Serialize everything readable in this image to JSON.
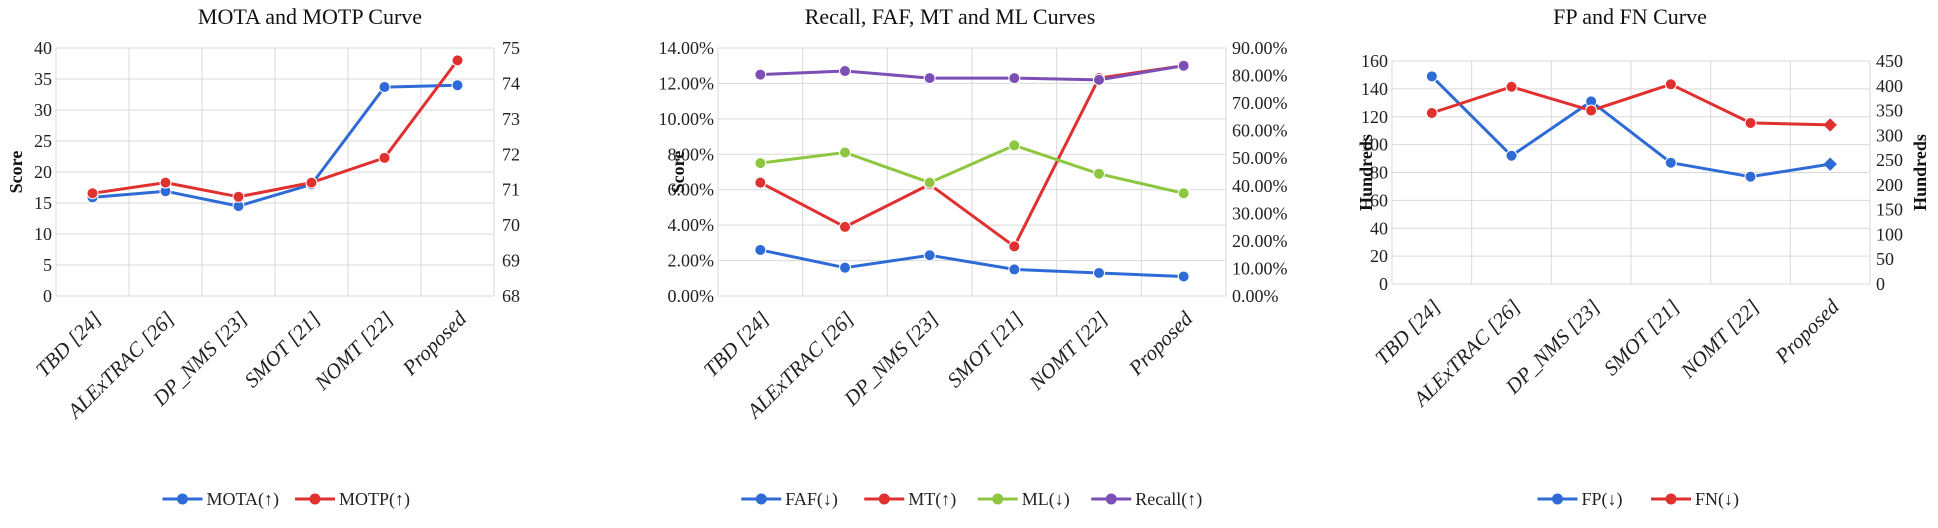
{
  "chart_data": [
    {
      "type": "line",
      "title": "MOTA and MOTP Curve",
      "categories": [
        "TBD [24]",
        "ALExTRAC [26]",
        "DP_NMS [23]",
        "SMOT [21]",
        "NOMT [22]",
        "Proposed"
      ],
      "left_axis": {
        "label": "Score",
        "min": 0,
        "max": 40,
        "step": 5,
        "ticks": [
          "0",
          "5",
          "10",
          "15",
          "20",
          "25",
          "30",
          "35",
          "40"
        ]
      },
      "right_axis": {
        "label": "",
        "min": 68,
        "max": 75,
        "step": 1,
        "ticks": [
          "68",
          "69",
          "70",
          "71",
          "72",
          "73",
          "74",
          "75"
        ]
      },
      "series": [
        {
          "name": "MOTA(↑)",
          "axis": "left",
          "color": "#2e6bd6",
          "marker": "circle",
          "values": [
            15.9,
            16.9,
            14.5,
            18.0,
            33.7,
            34.0
          ]
        },
        {
          "name": "MOTP(↑)",
          "axis": "right",
          "color": "#e03030",
          "marker": "circle",
          "values": [
            70.9,
            71.2,
            70.8,
            71.2,
            71.9,
            74.65
          ]
        }
      ],
      "legend": "bottom"
    },
    {
      "type": "line",
      "title": "Recall, FAF, MT and ML Curves",
      "categories": [
        "TBD [24]",
        "ALExTRAC [26]",
        "DP_NMS [23]",
        "SMOT [21]",
        "NOMT [22]",
        "Proposed"
      ],
      "left_axis": {
        "label": "Score",
        "min": 0,
        "max": 14,
        "step": 2,
        "ticks": [
          "0.00%",
          "2.00%",
          "4.00%",
          "6.00%",
          "8.00%",
          "10.00%",
          "12.00%",
          "14.00%"
        ]
      },
      "right_axis": {
        "label": "",
        "min": 0,
        "max": 90,
        "step": 10,
        "ticks": [
          "0.00%",
          "10.00%",
          "20.00%",
          "30.00%",
          "40.00%",
          "50.00%",
          "60.00%",
          "70.00%",
          "80.00%",
          "90.00%"
        ]
      },
      "series": [
        {
          "name": "FAF(↓)",
          "axis": "left",
          "color": "#2e6bd6",
          "marker": "circle",
          "values": [
            2.6,
            1.6,
            2.3,
            1.5,
            1.3,
            1.1
          ]
        },
        {
          "name": "MT(↑)",
          "axis": "left",
          "color": "#e03030",
          "marker": "circle",
          "values": [
            6.4,
            3.9,
            6.3,
            2.8,
            12.3,
            13.0
          ]
        },
        {
          "name": "ML(↓)",
          "axis": "left",
          "color": "#8dc63f",
          "marker": "circle",
          "values": [
            7.5,
            8.1,
            6.4,
            8.5,
            6.9,
            5.8
          ]
        },
        {
          "name": "Recall(↑)",
          "axis": "left",
          "color": "#7b4fb5",
          "marker": "circle",
          "values": [
            12.5,
            12.7,
            12.3,
            12.3,
            12.2,
            13.0
          ]
        }
      ],
      "legend": "bottom"
    },
    {
      "type": "line",
      "title": "FP and FN Curve",
      "categories": [
        "TBD [24]",
        "ALExTRAC [26]",
        "DP_NMS [23]",
        "SMOT [21]",
        "NOMT [22]",
        "Proposed"
      ],
      "left_axis": {
        "label": "Hundreds",
        "min": 0,
        "max": 160,
        "step": 20,
        "ticks": [
          "0",
          "20",
          "40",
          "60",
          "80",
          "100",
          "120",
          "140",
          "160"
        ]
      },
      "right_axis": {
        "label": "Hundreds",
        "min": 0,
        "max": 450,
        "step": 50,
        "ticks": [
          "0",
          "50",
          "100",
          "150",
          "200",
          "250",
          "300",
          "350",
          "400",
          "450"
        ]
      },
      "series": [
        {
          "name": "FP(↓)",
          "axis": "left",
          "color": "#2e6bd6",
          "marker": "circle",
          "last_marker": "diamond",
          "values": [
            149,
            92,
            131,
            87,
            77,
            86
          ]
        },
        {
          "name": "FN(↓)",
          "axis": "right",
          "color": "#e03030",
          "marker": "circle",
          "last_marker": "diamond",
          "values": [
            345,
            398,
            350,
            403,
            325,
            321
          ]
        }
      ],
      "legend": "bottom"
    }
  ]
}
